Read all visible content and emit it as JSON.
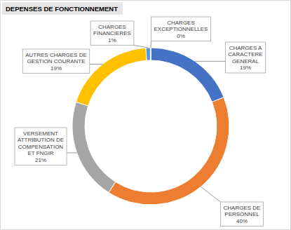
{
  "chart_data": {
    "type": "pie",
    "title": "DEPENSES DE FONCTIONNEMENT",
    "categories": [
      "CHARGES A CARACTERE GENERAL",
      "CHARGES DE PERSONNEL",
      "VERSEMENT ATTRIBUTION DE COMPENSATION ET FNGIR",
      "AUTRES CHARGES DE GESTION COURANTE",
      "CHARGES FINANCIERES",
      "CHARGES EXCEPTIONNELLES"
    ],
    "values": [
      19,
      40,
      21,
      19,
      1,
      0
    ],
    "value_labels": [
      "19%",
      "40%",
      "21%",
      "19%",
      "1%",
      "0%"
    ],
    "colors": [
      "#4472c4",
      "#ed7d31",
      "#a5a5a5",
      "#ffc000",
      "#5b9bd5",
      "#264478"
    ],
    "data_labels": true
  }
}
